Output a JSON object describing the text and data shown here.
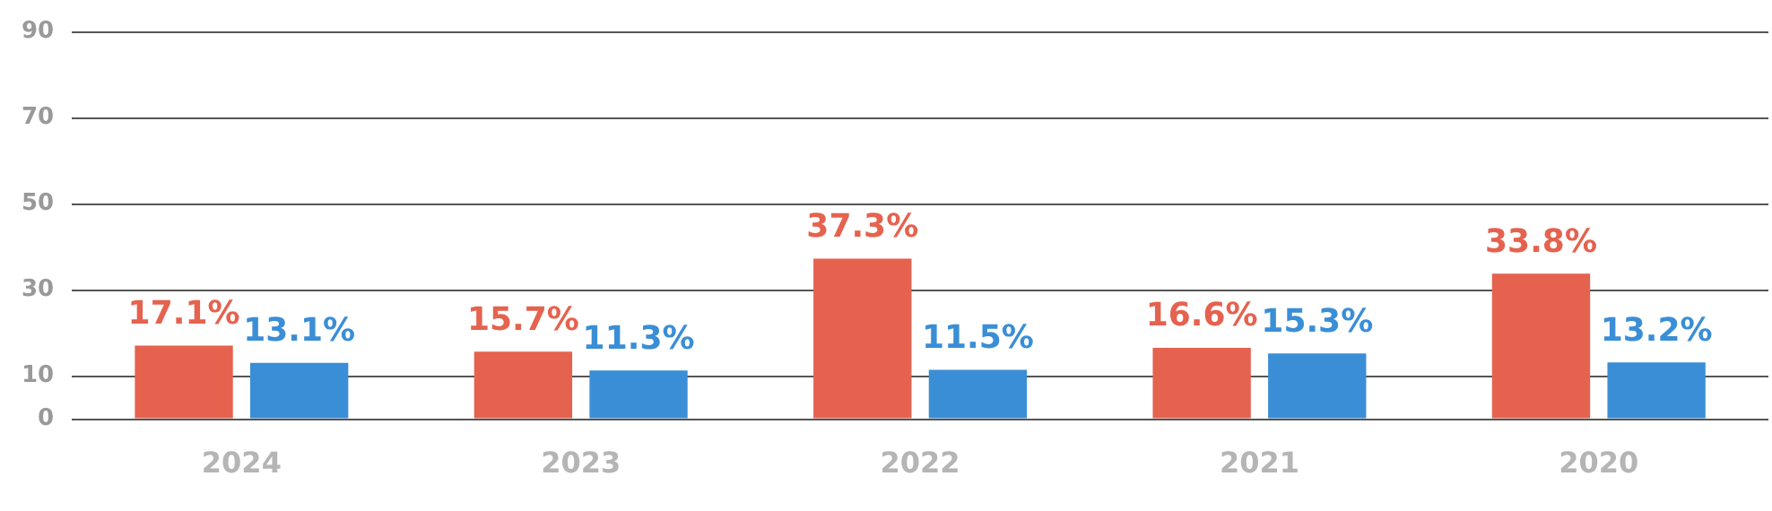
{
  "chart_data": {
    "type": "bar",
    "categories": [
      "2024",
      "2023",
      "2022",
      "2021",
      "2020"
    ],
    "series": [
      {
        "color": "#e5624f",
        "values": [
          17.1,
          15.7,
          37.3,
          16.6,
          33.8
        ],
        "value_labels": [
          "17.1%",
          "15.7%",
          "37.3%",
          "16.6%",
          "33.8%"
        ]
      },
      {
        "color": "#3a8ed6",
        "values": [
          13.1,
          11.3,
          11.5,
          15.3,
          13.2
        ],
        "value_labels": [
          "13.1%",
          "11.3%",
          "11.5%",
          "15.3%",
          "13.2%"
        ]
      }
    ],
    "ylim": [
      0,
      90
    ],
    "yticks": [
      0,
      10,
      30,
      50,
      70,
      90
    ],
    "grid": "y",
    "legend": false
  }
}
